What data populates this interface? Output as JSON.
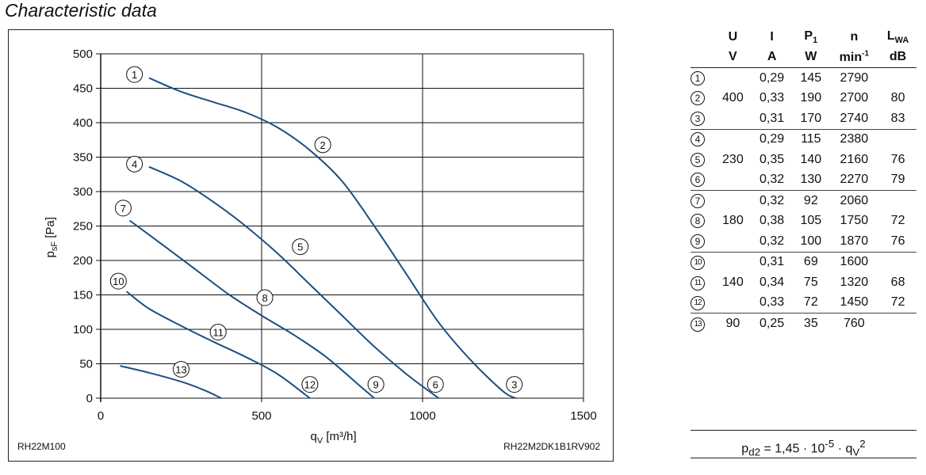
{
  "heading": "Characteristic data",
  "chart_data": {
    "type": "line",
    "xlabel": "qV [m³/h]",
    "ylabel": "psF [Pa]",
    "xlim": [
      0,
      1500
    ],
    "ylim": [
      0,
      500
    ],
    "xticks": [
      0,
      500,
      1000,
      1500
    ],
    "yticks": [
      0,
      50,
      100,
      150,
      200,
      250,
      300,
      350,
      400,
      450,
      500
    ],
    "grid": true,
    "note_left": "RH22M100",
    "note_right": "RH22M2DK1B1RV902",
    "series": [
      {
        "name": "1-3",
        "x": [
          150,
          250,
          350,
          450,
          550,
          650,
          750,
          850,
          950,
          1050,
          1150,
          1250,
          1290
        ],
        "y": [
          465,
          445,
          430,
          415,
          393,
          360,
          315,
          250,
          180,
          110,
          55,
          10,
          0
        ]
      },
      {
        "name": "4-6",
        "x": [
          150,
          250,
          350,
          450,
          550,
          650,
          750,
          850,
          950,
          1050
        ],
        "y": [
          336,
          315,
          285,
          250,
          210,
          165,
          120,
          75,
          35,
          0
        ]
      },
      {
        "name": "7-9",
        "x": [
          90,
          200,
          300,
          400,
          500,
          600,
          700,
          800,
          850
        ],
        "y": [
          258,
          220,
          185,
          150,
          120,
          92,
          60,
          20,
          0
        ]
      },
      {
        "name": "10-12",
        "x": [
          80,
          150,
          250,
          350,
          450,
          550,
          650
        ],
        "y": [
          155,
          130,
          105,
          82,
          60,
          35,
          0
        ]
      },
      {
        "name": "13",
        "x": [
          60,
          150,
          250,
          320,
          375
        ],
        "y": [
          47,
          37,
          24,
          12,
          0
        ]
      }
    ],
    "markers": [
      {
        "label": "1",
        "x": 105,
        "y": 470
      },
      {
        "label": "2",
        "x": 690,
        "y": 368
      },
      {
        "label": "3",
        "x": 1285,
        "y": 20
      },
      {
        "label": "4",
        "x": 105,
        "y": 340
      },
      {
        "label": "5",
        "x": 620,
        "y": 220
      },
      {
        "label": "6",
        "x": 1040,
        "y": 20
      },
      {
        "label": "7",
        "x": 70,
        "y": 276
      },
      {
        "label": "8",
        "x": 510,
        "y": 146
      },
      {
        "label": "9",
        "x": 855,
        "y": 20
      },
      {
        "label": "10",
        "x": 55,
        "y": 170
      },
      {
        "label": "11",
        "x": 365,
        "y": 96
      },
      {
        "label": "12",
        "x": 650,
        "y": 20
      },
      {
        "label": "13",
        "x": 250,
        "y": 42
      }
    ]
  },
  "table": {
    "headers": [
      "U",
      "I",
      "P",
      "n",
      "L"
    ],
    "header_subs": [
      "",
      "",
      "1",
      "",
      "WA"
    ],
    "units": [
      "V",
      "A",
      "W",
      "min",
      "dB"
    ],
    "unit_sups": [
      "",
      "",
      "",
      "-1",
      ""
    ],
    "rows": [
      {
        "no": "1",
        "u": "",
        "i": "0,29",
        "p": "145",
        "n": "2790",
        "l": ""
      },
      {
        "no": "2",
        "u": "400",
        "i": "0,33",
        "p": "190",
        "n": "2700",
        "l": "80"
      },
      {
        "no": "3",
        "u": "",
        "i": "0,31",
        "p": "170",
        "n": "2740",
        "l": "83"
      },
      {
        "no": "4",
        "u": "",
        "i": "0,29",
        "p": "115",
        "n": "2380",
        "l": ""
      },
      {
        "no": "5",
        "u": "230",
        "i": "0,35",
        "p": "140",
        "n": "2160",
        "l": "76"
      },
      {
        "no": "6",
        "u": "",
        "i": "0,32",
        "p": "130",
        "n": "2270",
        "l": "79"
      },
      {
        "no": "7",
        "u": "",
        "i": "0,32",
        "p": "92",
        "n": "2060",
        "l": ""
      },
      {
        "no": "8",
        "u": "180",
        "i": "0,38",
        "p": "105",
        "n": "1750",
        "l": "72"
      },
      {
        "no": "9",
        "u": "",
        "i": "0,32",
        "p": "100",
        "n": "1870",
        "l": "76"
      },
      {
        "no": "10",
        "u": "",
        "i": "0,31",
        "p": "69",
        "n": "1600",
        "l": ""
      },
      {
        "no": "11",
        "u": "140",
        "i": "0,34",
        "p": "75",
        "n": "1320",
        "l": "68"
      },
      {
        "no": "12",
        "u": "",
        "i": "0,33",
        "p": "72",
        "n": "1450",
        "l": "72"
      },
      {
        "no": "13",
        "u": "90",
        "i": "0,25",
        "p": "35",
        "n": "760",
        "l": ""
      }
    ]
  },
  "formula": {
    "prefix": "p",
    "prefix_sub": "d2",
    "body": " = 1,45 · 10",
    "exp": "-5",
    "mult": " · q",
    "var_sub": "V",
    "var_sup": "2"
  },
  "colors": {
    "curve": "#1b4f82",
    "grid": "#111111"
  }
}
